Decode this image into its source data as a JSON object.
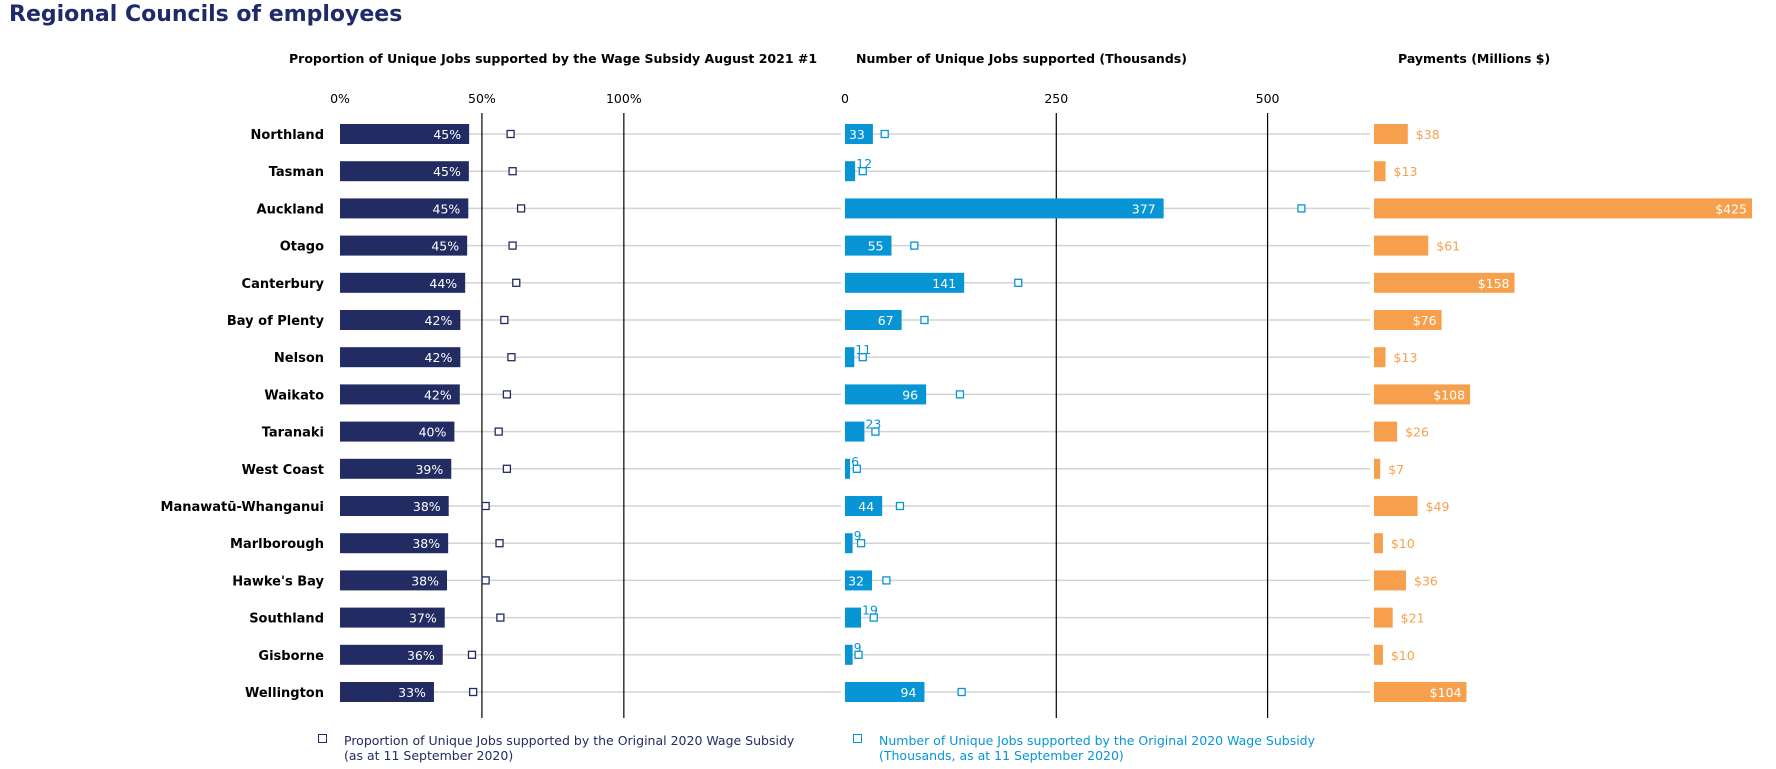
{
  "title": "Regional Councils of employees",
  "panels": {
    "proportion_title": "Proportion of Unique Jobs supported by the  Wage Subsidy August 2021 #1",
    "jobs_title": "Number of Unique Jobs supported (Thousands)",
    "payments_title": "Payments (Millions $)"
  },
  "legend": {
    "proportion_line1": "Proportion of Unique Jobs supported by the Original 2020 Wage Subsidy",
    "proportion_line2": "(as at 11 September 2020)",
    "jobs_line1": "Number of Unique Jobs supported by the Original 2020 Wage Subsidy",
    "jobs_line2": "(Thousands, as at 11 September 2020)"
  },
  "colors": {
    "title": "#1f2a6b",
    "proportion": "#232b63",
    "jobs": "#0795d6",
    "payments": "#f6a04d",
    "gridline": "#d3d3d3",
    "refline": "#000000"
  },
  "chart_data": [
    {
      "type": "bar",
      "orientation": "horizontal",
      "title": "Proportion of Unique Jobs supported by the  Wage Subsidy August 2021 #1",
      "categories": [
        "Northland",
        "Tasman",
        "Auckland",
        "Otago",
        "Canterbury",
        "Bay of Plenty",
        "Nelson",
        "Waikato",
        "Taranaki",
        "West Coast",
        "Manawatū-Whanganui",
        "Marlborough",
        "Hawke's Bay",
        "Southland",
        "Gisborne",
        "Wellington"
      ],
      "values": [
        45.5,
        45.4,
        45.2,
        44.8,
        44.1,
        42.4,
        42.4,
        42.2,
        40.3,
        39.2,
        38.3,
        38.1,
        37.7,
        36.9,
        36.2,
        33.1
      ],
      "labels": [
        "45%",
        "45%",
        "45%",
        "45%",
        "44%",
        "42%",
        "42%",
        "42%",
        "40%",
        "39%",
        "38%",
        "38%",
        "38%",
        "37%",
        "36%",
        "33%"
      ],
      "markers": {
        "name": "Proportion of Unique Jobs supported by the Original 2020 Wage Subsidy (as at 11 September 2020)",
        "values": [
          60.1,
          60.8,
          63.8,
          60.8,
          62.1,
          57.9,
          60.4,
          58.8,
          55.9,
          58.8,
          51.3,
          56.2,
          51.3,
          56.5,
          46.5,
          46.9
        ]
      },
      "xlim": [
        0,
        130
      ],
      "ticks": [
        "0%",
        "50%",
        "100%"
      ],
      "tick_values": [
        0,
        50,
        100
      ]
    },
    {
      "type": "bar",
      "orientation": "horizontal",
      "title": "Number of Unique Jobs supported (Thousands)",
      "categories": [
        "Northland",
        "Tasman",
        "Auckland",
        "Otago",
        "Canterbury",
        "Bay of Plenty",
        "Nelson",
        "Waikato",
        "Taranaki",
        "West Coast",
        "Manawatū-Whanganui",
        "Marlborough",
        "Hawke's Bay",
        "Southland",
        "Gisborne",
        "Wellington"
      ],
      "values": [
        33,
        12,
        377,
        55,
        141,
        67,
        11,
        96,
        23,
        6,
        44,
        9,
        32,
        19,
        9,
        94
      ],
      "markers": {
        "name": "Number of Unique Jobs supported by the Original 2020 Wage Subsidy (Thousands, as at 11 September 2020)",
        "values": [
          47,
          21,
          540,
          82,
          205,
          94,
          21,
          136,
          36,
          14,
          65,
          19,
          49,
          34,
          16,
          138
        ]
      },
      "xlim": [
        0,
        620
      ],
      "ticks": [
        "0",
        "250",
        "500"
      ],
      "tick_values": [
        0,
        250,
        500
      ]
    },
    {
      "type": "bar",
      "orientation": "horizontal",
      "title": "Payments (Millions $)",
      "categories": [
        "Northland",
        "Tasman",
        "Auckland",
        "Otago",
        "Canterbury",
        "Bay of Plenty",
        "Nelson",
        "Waikato",
        "Taranaki",
        "West Coast",
        "Manawatū-Whanganui",
        "Marlborough",
        "Hawke's Bay",
        "Southland",
        "Gisborne",
        "Wellington"
      ],
      "values": [
        38,
        13,
        425,
        61,
        158,
        76,
        13,
        108,
        26,
        7,
        49,
        10,
        36,
        21,
        10,
        104
      ],
      "labels": [
        "$38",
        "$13",
        "$425",
        "$61",
        "$158",
        "$76",
        "$13",
        "$108",
        "$26",
        "$7",
        "$49",
        "$10",
        "$36",
        "$21",
        "$10",
        "$104"
      ],
      "xlim": [
        0,
        425
      ]
    }
  ]
}
